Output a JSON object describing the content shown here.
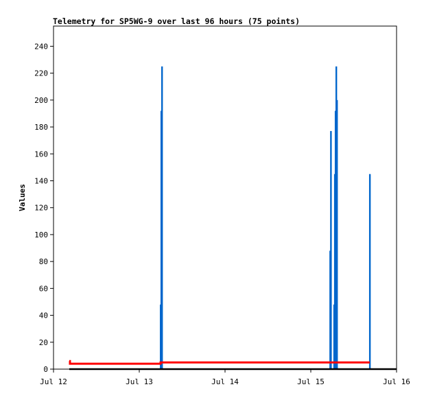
{
  "chart_data": {
    "type": "bar",
    "title": "Telemetry for SP5WG-9 over last 96 hours (75 points)",
    "xlabel": "",
    "ylabel": "Values",
    "xlim": [
      "Jul 12 00:00",
      "Jul 16 00:00"
    ],
    "ylim": [
      0,
      255
    ],
    "x_ticks": [
      "Jul 12",
      "Jul 13",
      "Jul 14",
      "Jul 15",
      "Jul 16"
    ],
    "y_ticks": [
      0,
      20,
      40,
      60,
      80,
      100,
      120,
      140,
      160,
      180,
      200,
      220,
      240
    ],
    "grid": false,
    "colors": {
      "bars": "#0066cc",
      "red_series": "#ff0000",
      "black_series": "#000000"
    },
    "series": [
      {
        "type": "bar",
        "color": "#0066cc",
        "points": [
          {
            "x": "Jul 13 05:57",
            "y": 48
          },
          {
            "x": "Jul 13 06:08",
            "y": 192
          },
          {
            "x": "Jul 13 06:20",
            "y": 225
          },
          {
            "x": "Jul 15 05:24",
            "y": 88
          },
          {
            "x": "Jul 15 05:36",
            "y": 177
          },
          {
            "x": "Jul 15 06:30",
            "y": 48
          },
          {
            "x": "Jul 15 06:42",
            "y": 145
          },
          {
            "x": "Jul 15 06:54",
            "y": 192
          },
          {
            "x": "Jul 15 07:06",
            "y": 225
          },
          {
            "x": "Jul 15 07:18",
            "y": 200
          },
          {
            "x": "Jul 15 16:30",
            "y": 145
          }
        ]
      },
      {
        "type": "step",
        "color": "#ff0000",
        "points": [
          {
            "x": "Jul 12 04:24",
            "y": 6
          },
          {
            "x": "Jul 12 04:36",
            "y": 4
          },
          {
            "x": "Jul 13 05:57",
            "y": 5
          },
          {
            "x": "Jul 15 16:30",
            "y": 5
          }
        ]
      },
      {
        "type": "line",
        "color": "#000000",
        "points": [
          {
            "x": "Jul 12 04:24",
            "y": 0
          },
          {
            "x": "Jul 16 00:00",
            "y": 0
          }
        ]
      }
    ]
  }
}
